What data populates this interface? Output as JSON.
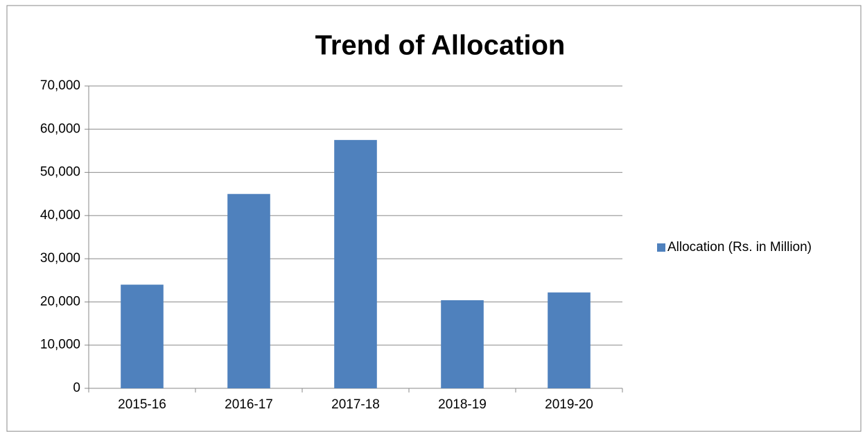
{
  "chart_data": {
    "type": "bar",
    "title": "Trend of Allocation",
    "categories": [
      "2015-16",
      "2016-17",
      "2017-18",
      "2018-19",
      "2019-20"
    ],
    "series": [
      {
        "name": "Allocation (Rs. in Million)",
        "color": "#4f81bd",
        "values": [
          24000,
          45000,
          57500,
          20400,
          22200
        ]
      }
    ],
    "ylim": [
      0,
      70000
    ],
    "yticks": [
      0,
      {
        "value": 10000,
        "label": "10,000"
      },
      {
        "value": 20000,
        "label": "20,000"
      },
      {
        "value": 30000,
        "label": "30,000"
      },
      {
        "value": 40000,
        "label": "40,000"
      },
      {
        "value": 50000,
        "label": "50,000"
      },
      {
        "value": 60000,
        "label": "60,000"
      },
      {
        "value": 70000,
        "label": "70,000"
      }
    ],
    "grid": true,
    "legend": "right"
  }
}
